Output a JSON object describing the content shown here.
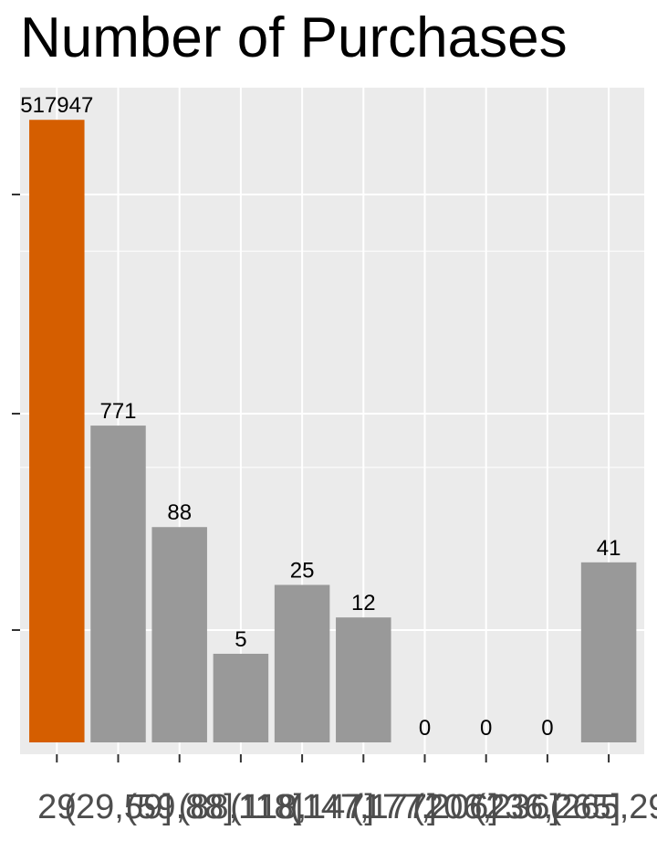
{
  "chart_data": {
    "type": "bar",
    "title": "Number of Purchases",
    "xlabel": "",
    "ylabel": "",
    "categories": [
      "29",
      "(29,59]",
      "(59,88]",
      "(88,118]",
      "(118,147]",
      "(147,177]",
      "(177,206]",
      "(206,236]",
      "(236,265]",
      "(265,29"
    ],
    "values": [
      517947,
      771,
      88,
      5,
      25,
      12,
      0,
      0,
      0,
      41
    ],
    "value_labels": [
      "517947",
      "771",
      "88",
      "5",
      "25",
      "12",
      "0",
      "0",
      "0",
      "41"
    ],
    "y_scale": "log",
    "ylim": [
      0.6,
      900000
    ],
    "grid": true,
    "legend": "none",
    "colors": {
      "highlight": "#D55E00",
      "default": "#999999",
      "panel_background": "#EBEBEB",
      "grid": "#FFFFFF"
    },
    "highlight_index": 0
  }
}
